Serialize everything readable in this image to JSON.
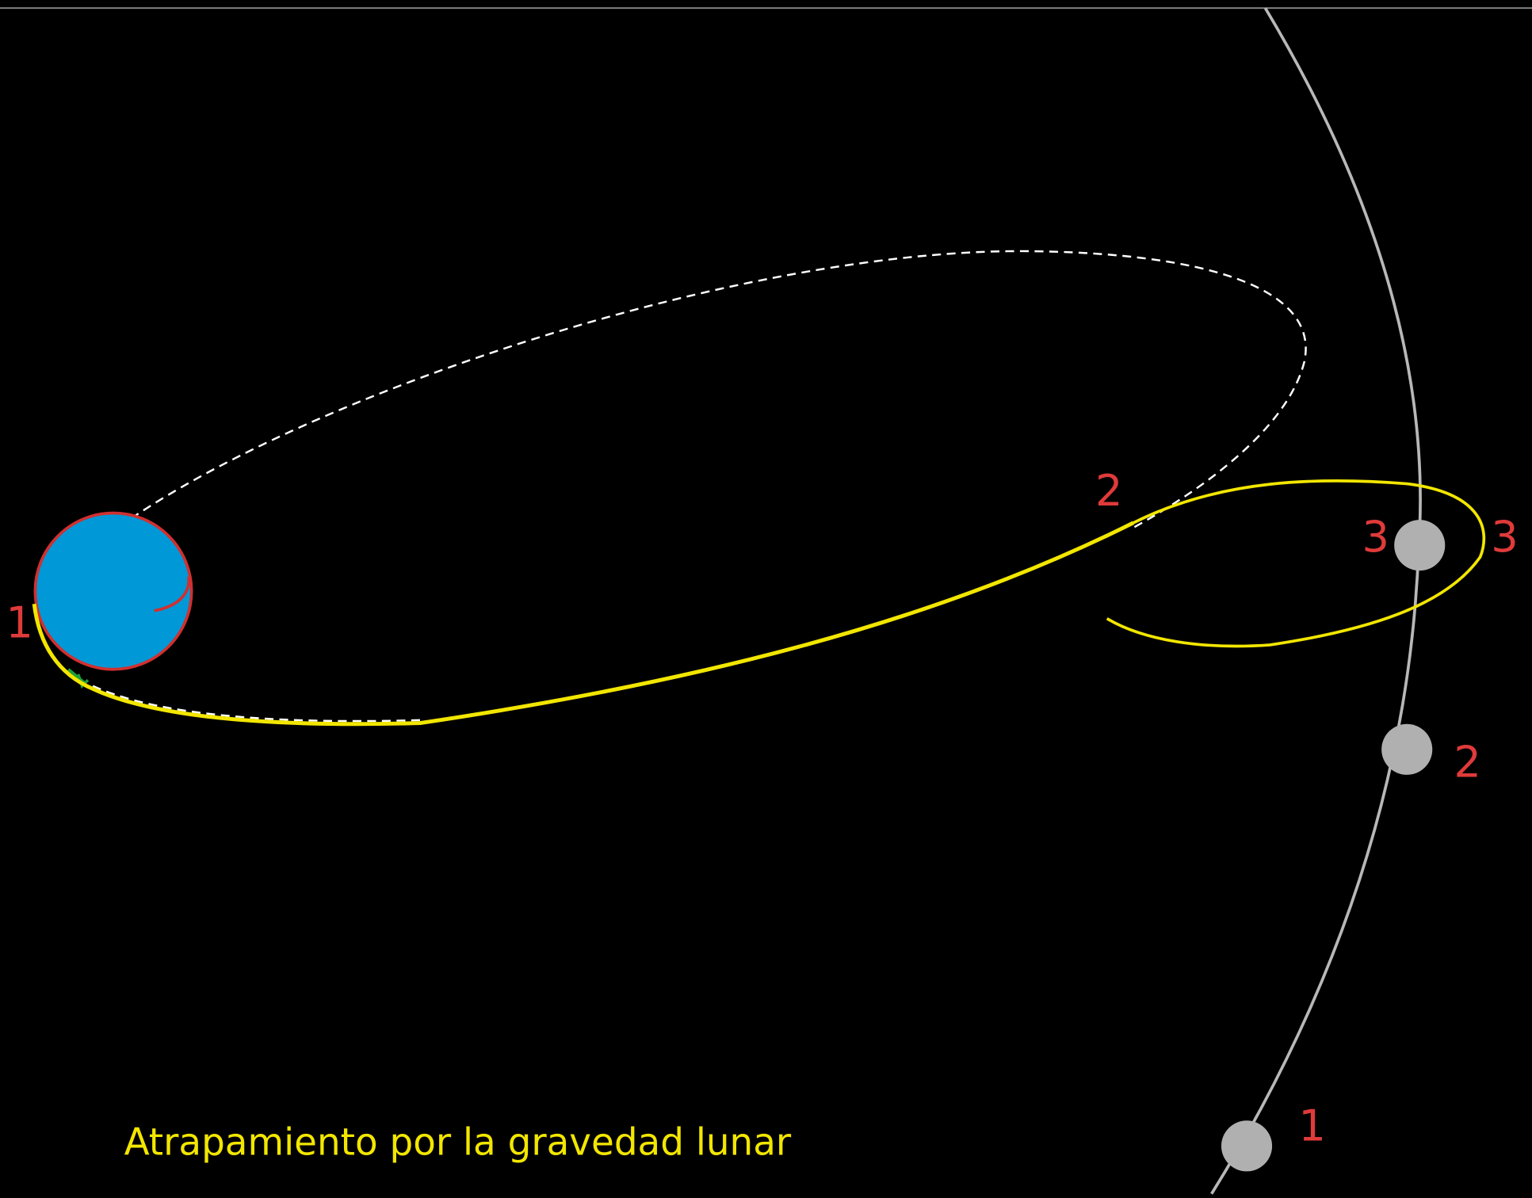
{
  "title": "Atrapamiento por la gravedad lunar",
  "spacecraft_labels": [
    "1",
    "2",
    "3"
  ],
  "moon_labels": [
    "1",
    "2",
    "3"
  ]
}
